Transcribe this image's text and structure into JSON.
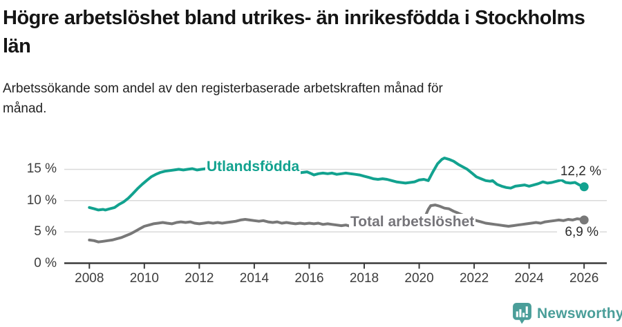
{
  "header": {
    "title": "Högre arbetslöshet bland utrikes- än inrikesfödda i Stockholms län",
    "subtitle": "Arbetssökande som andel av den registerbaserade arbetskraften månad för månad."
  },
  "colors": {
    "series_teal": "#12a28f",
    "series_gray": "#787878",
    "label_gray": "#76757a",
    "logo_teal": "#4a9e99",
    "grid": "#d9d9d9",
    "axis": "#3a3a3a"
  },
  "chart_data": {
    "type": "line",
    "title": "Högre arbetslöshet bland utrikes- än inrikesfödda i Stockholms län",
    "subtitle": "Arbetssökande som andel av den registerbaserade arbetskraften månad för månad.",
    "xlabel": "",
    "ylabel": "",
    "xlim": [
      2007.1,
      2027.3
    ],
    "ylim": [
      0,
      17.5
    ],
    "grid": "horizontal",
    "legend": "inline-labels",
    "x_ticks": [
      2008,
      2010,
      2012,
      2014,
      2016,
      2018,
      2020,
      2022,
      2024,
      2026
    ],
    "y_ticks": [
      {
        "label": "0 %",
        "value": 0
      },
      {
        "label": "5 %",
        "value": 5
      },
      {
        "label": "10 %",
        "value": 10
      },
      {
        "label": "15 %",
        "value": 15
      }
    ],
    "series": [
      {
        "name": "Utlandsfödda",
        "color": "#12a28f",
        "end_label": "12,2 %",
        "end_value": 12.2,
        "points": [
          [
            2008.0,
            8.9
          ],
          [
            2008.17,
            8.7
          ],
          [
            2008.33,
            8.5
          ],
          [
            2008.5,
            8.6
          ],
          [
            2008.58,
            8.5
          ],
          [
            2008.75,
            8.7
          ],
          [
            2008.92,
            8.9
          ],
          [
            2009.08,
            9.4
          ],
          [
            2009.25,
            9.8
          ],
          [
            2009.42,
            10.4
          ],
          [
            2009.58,
            11.1
          ],
          [
            2009.75,
            11.9
          ],
          [
            2009.92,
            12.6
          ],
          [
            2010.08,
            13.2
          ],
          [
            2010.25,
            13.8
          ],
          [
            2010.42,
            14.2
          ],
          [
            2010.58,
            14.5
          ],
          [
            2010.75,
            14.7
          ],
          [
            2010.92,
            14.8
          ],
          [
            2011.08,
            14.9
          ],
          [
            2011.25,
            15.0
          ],
          [
            2011.42,
            14.9
          ],
          [
            2011.58,
            15.0
          ],
          [
            2011.75,
            15.1
          ],
          [
            2011.92,
            14.9
          ],
          [
            2012.08,
            15.0
          ],
          [
            2012.25,
            15.1
          ],
          [
            2012.42,
            15.2
          ],
          [
            2012.58,
            15.0
          ],
          [
            2012.75,
            14.9
          ],
          [
            2012.92,
            15.0
          ],
          [
            2013.08,
            14.9
          ],
          [
            2013.25,
            15.0
          ],
          [
            2013.42,
            14.9
          ],
          [
            2013.58,
            14.8
          ],
          [
            2013.75,
            14.9
          ],
          [
            2013.92,
            14.8
          ],
          [
            2014.08,
            14.7
          ],
          [
            2014.25,
            14.8
          ],
          [
            2014.42,
            14.7
          ],
          [
            2014.58,
            14.6
          ],
          [
            2014.75,
            14.5
          ],
          [
            2014.92,
            14.6
          ],
          [
            2015.08,
            14.5
          ],
          [
            2015.25,
            14.4
          ],
          [
            2015.42,
            14.5
          ],
          [
            2015.58,
            14.4
          ],
          [
            2015.75,
            14.5
          ],
          [
            2015.92,
            14.6
          ],
          [
            2016.08,
            14.3
          ],
          [
            2016.17,
            14.1
          ],
          [
            2016.33,
            14.3
          ],
          [
            2016.5,
            14.4
          ],
          [
            2016.67,
            14.3
          ],
          [
            2016.83,
            14.4
          ],
          [
            2017.0,
            14.2
          ],
          [
            2017.17,
            14.3
          ],
          [
            2017.33,
            14.4
          ],
          [
            2017.5,
            14.3
          ],
          [
            2017.67,
            14.2
          ],
          [
            2017.83,
            14.1
          ],
          [
            2018.0,
            13.9
          ],
          [
            2018.17,
            13.7
          ],
          [
            2018.33,
            13.5
          ],
          [
            2018.5,
            13.4
          ],
          [
            2018.67,
            13.5
          ],
          [
            2018.83,
            13.4
          ],
          [
            2019.0,
            13.2
          ],
          [
            2019.17,
            13.0
          ],
          [
            2019.33,
            12.9
          ],
          [
            2019.5,
            12.8
          ],
          [
            2019.67,
            12.9
          ],
          [
            2019.83,
            13.0
          ],
          [
            2020.0,
            13.3
          ],
          [
            2020.17,
            13.4
          ],
          [
            2020.33,
            13.2
          ],
          [
            2020.5,
            14.6
          ],
          [
            2020.67,
            15.9
          ],
          [
            2020.83,
            16.6
          ],
          [
            2020.92,
            16.8
          ],
          [
            2021.08,
            16.6
          ],
          [
            2021.25,
            16.3
          ],
          [
            2021.42,
            15.8
          ],
          [
            2021.58,
            15.4
          ],
          [
            2021.75,
            15.0
          ],
          [
            2021.92,
            14.4
          ],
          [
            2022.08,
            13.8
          ],
          [
            2022.25,
            13.5
          ],
          [
            2022.42,
            13.2
          ],
          [
            2022.58,
            13.1
          ],
          [
            2022.67,
            13.2
          ],
          [
            2022.83,
            12.6
          ],
          [
            2023.0,
            12.3
          ],
          [
            2023.17,
            12.1
          ],
          [
            2023.33,
            12.0
          ],
          [
            2023.5,
            12.3
          ],
          [
            2023.67,
            12.4
          ],
          [
            2023.83,
            12.5
          ],
          [
            2024.0,
            12.3
          ],
          [
            2024.17,
            12.5
          ],
          [
            2024.33,
            12.7
          ],
          [
            2024.5,
            13.0
          ],
          [
            2024.67,
            12.8
          ],
          [
            2024.83,
            12.9
          ],
          [
            2025.0,
            13.1
          ],
          [
            2025.17,
            13.3
          ],
          [
            2025.33,
            12.9
          ],
          [
            2025.5,
            12.8
          ],
          [
            2025.67,
            12.9
          ],
          [
            2025.83,
            12.5
          ],
          [
            2026.0,
            12.2
          ]
        ]
      },
      {
        "name": "Total arbetslöshet",
        "color": "#787878",
        "end_label": "6,9 %",
        "end_value": 6.9,
        "points": [
          [
            2008.0,
            3.7
          ],
          [
            2008.17,
            3.6
          ],
          [
            2008.33,
            3.4
          ],
          [
            2008.5,
            3.5
          ],
          [
            2008.67,
            3.6
          ],
          [
            2008.83,
            3.7
          ],
          [
            2009.0,
            3.9
          ],
          [
            2009.17,
            4.1
          ],
          [
            2009.33,
            4.4
          ],
          [
            2009.5,
            4.7
          ],
          [
            2009.67,
            5.1
          ],
          [
            2009.83,
            5.5
          ],
          [
            2010.0,
            5.9
          ],
          [
            2010.17,
            6.1
          ],
          [
            2010.33,
            6.3
          ],
          [
            2010.5,
            6.4
          ],
          [
            2010.67,
            6.5
          ],
          [
            2010.83,
            6.4
          ],
          [
            2011.0,
            6.3
          ],
          [
            2011.17,
            6.5
          ],
          [
            2011.33,
            6.6
          ],
          [
            2011.5,
            6.5
          ],
          [
            2011.67,
            6.6
          ],
          [
            2011.83,
            6.4
          ],
          [
            2012.0,
            6.3
          ],
          [
            2012.17,
            6.4
          ],
          [
            2012.33,
            6.5
          ],
          [
            2012.5,
            6.4
          ],
          [
            2012.67,
            6.5
          ],
          [
            2012.83,
            6.4
          ],
          [
            2013.0,
            6.5
          ],
          [
            2013.17,
            6.6
          ],
          [
            2013.33,
            6.7
          ],
          [
            2013.5,
            6.9
          ],
          [
            2013.67,
            7.0
          ],
          [
            2013.83,
            6.9
          ],
          [
            2014.0,
            6.8
          ],
          [
            2014.17,
            6.7
          ],
          [
            2014.33,
            6.8
          ],
          [
            2014.5,
            6.6
          ],
          [
            2014.67,
            6.5
          ],
          [
            2014.83,
            6.6
          ],
          [
            2015.0,
            6.4
          ],
          [
            2015.17,
            6.5
          ],
          [
            2015.33,
            6.4
          ],
          [
            2015.5,
            6.3
          ],
          [
            2015.67,
            6.4
          ],
          [
            2015.83,
            6.3
          ],
          [
            2016.0,
            6.4
          ],
          [
            2016.17,
            6.3
          ],
          [
            2016.33,
            6.4
          ],
          [
            2016.5,
            6.2
          ],
          [
            2016.67,
            6.3
          ],
          [
            2016.83,
            6.2
          ],
          [
            2017.0,
            6.1
          ],
          [
            2017.17,
            6.0
          ],
          [
            2017.33,
            6.1
          ],
          [
            2017.5,
            5.9
          ],
          [
            2017.67,
            6.0
          ],
          [
            2017.83,
            5.9
          ],
          [
            2018.0,
            6.0
          ],
          [
            2018.17,
            5.9
          ],
          [
            2018.33,
            6.0
          ],
          [
            2018.5,
            5.9
          ],
          [
            2018.67,
            6.0
          ],
          [
            2018.83,
            5.9
          ],
          [
            2019.0,
            6.0
          ],
          [
            2019.17,
            6.0
          ],
          [
            2019.33,
            5.9
          ],
          [
            2019.5,
            6.0
          ],
          [
            2019.67,
            6.1
          ],
          [
            2019.83,
            6.1
          ],
          [
            2020.0,
            6.3
          ],
          [
            2020.17,
            7.0
          ],
          [
            2020.33,
            8.6
          ],
          [
            2020.42,
            9.2
          ],
          [
            2020.58,
            9.3
          ],
          [
            2020.75,
            9.1
          ],
          [
            2020.92,
            8.8
          ],
          [
            2021.08,
            8.7
          ],
          [
            2021.25,
            8.3
          ],
          [
            2021.42,
            8.0
          ],
          [
            2021.58,
            7.7
          ],
          [
            2021.75,
            7.4
          ],
          [
            2021.92,
            7.1
          ],
          [
            2022.08,
            6.8
          ],
          [
            2022.25,
            6.6
          ],
          [
            2022.42,
            6.4
          ],
          [
            2022.58,
            6.3
          ],
          [
            2022.75,
            6.2
          ],
          [
            2022.92,
            6.1
          ],
          [
            2023.08,
            6.0
          ],
          [
            2023.25,
            5.9
          ],
          [
            2023.42,
            6.0
          ],
          [
            2023.58,
            6.1
          ],
          [
            2023.75,
            6.2
          ],
          [
            2023.92,
            6.3
          ],
          [
            2024.08,
            6.4
          ],
          [
            2024.25,
            6.5
          ],
          [
            2024.42,
            6.4
          ],
          [
            2024.58,
            6.6
          ],
          [
            2024.75,
            6.7
          ],
          [
            2024.92,
            6.8
          ],
          [
            2025.08,
            6.9
          ],
          [
            2025.25,
            6.8
          ],
          [
            2025.42,
            7.0
          ],
          [
            2025.58,
            6.9
          ],
          [
            2025.75,
            7.1
          ],
          [
            2025.92,
            7.0
          ],
          [
            2026.0,
            6.9
          ]
        ]
      }
    ]
  },
  "footer": {
    "brand": "Newsworthy",
    "logo_icon": "bar-chart-speech-bubble-icon"
  }
}
